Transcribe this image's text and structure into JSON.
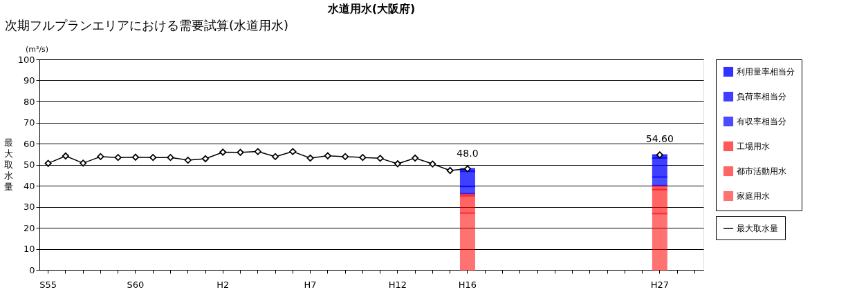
{
  "chart_data": {
    "type": "bar",
    "title": "水道用水(大阪府)",
    "ylabel": "最大取水量",
    "stacked": true,
    "annotations": [
      "次期フルプランエリアにおける需要試算(水道用水)",
      "(m³/s)"
    ],
    "categories": [
      "S55",
      null,
      null,
      null,
      null,
      "S60",
      null,
      null,
      null,
      null,
      "H2",
      null,
      null,
      null,
      null,
      "H7",
      null,
      null,
      null,
      null,
      "H12",
      null,
      null,
      null,
      "H16",
      null,
      null,
      null,
      null,
      null,
      null,
      null,
      null,
      null,
      null,
      "H27",
      null,
      null
    ],
    "series": [
      {
        "name": "家庭用水",
        "color": "#ff0000",
        "values": [
          null,
          null,
          null,
          null,
          null,
          null,
          null,
          null,
          null,
          null,
          null,
          null,
          null,
          null,
          null,
          null,
          null,
          null,
          null,
          null,
          null,
          null,
          null,
          null,
          27.0,
          null,
          null,
          null,
          null,
          null,
          null,
          null,
          null,
          null,
          null,
          26.7,
          null,
          null
        ]
      },
      {
        "name": "都市活動用水",
        "color": "#ff0000",
        "values": [
          null,
          null,
          null,
          null,
          null,
          null,
          null,
          null,
          null,
          null,
          null,
          null,
          null,
          null,
          null,
          null,
          null,
          null,
          null,
          null,
          null,
          null,
          null,
          null,
          8.2,
          null,
          null,
          null,
          null,
          null,
          null,
          null,
          null,
          null,
          null,
          11.4,
          null,
          null
        ]
      },
      {
        "name": "工場用水",
        "color": "#ff0000",
        "values": [
          null,
          null,
          null,
          null,
          null,
          null,
          null,
          null,
          null,
          null,
          null,
          null,
          null,
          null,
          null,
          null,
          null,
          null,
          null,
          null,
          null,
          null,
          null,
          null,
          1.0,
          null,
          null,
          null,
          null,
          null,
          null,
          null,
          null,
          null,
          null,
          2.0,
          null,
          null
        ]
      },
      {
        "name": "有収率相当分",
        "color": "#0000ff",
        "values": [
          null,
          null,
          null,
          null,
          null,
          null,
          null,
          null,
          null,
          null,
          null,
          null,
          null,
          null,
          null,
          null,
          null,
          null,
          null,
          null,
          null,
          null,
          null,
          null,
          3.4,
          null,
          null,
          null,
          null,
          null,
          null,
          null,
          null,
          null,
          null,
          4.0,
          null,
          null
        ]
      },
      {
        "name": "負荷率相当分",
        "color": "#0000ff",
        "values": [
          null,
          null,
          null,
          null,
          null,
          null,
          null,
          null,
          null,
          null,
          null,
          null,
          null,
          null,
          null,
          null,
          null,
          null,
          null,
          null,
          null,
          null,
          null,
          null,
          7.2,
          null,
          null,
          null,
          null,
          null,
          null,
          null,
          null,
          null,
          null,
          9.0,
          null,
          null
        ]
      },
      {
        "name": "利用量率相当分",
        "color": "#0000ff",
        "values": [
          null,
          null,
          null,
          null,
          null,
          null,
          null,
          null,
          null,
          null,
          null,
          null,
          null,
          null,
          null,
          null,
          null,
          null,
          null,
          null,
          null,
          null,
          null,
          null,
          1.2,
          null,
          null,
          null,
          null,
          null,
          null,
          null,
          null,
          null,
          null,
          1.5,
          null,
          null
        ]
      },
      {
        "name": "最大取水量",
        "type": "line",
        "color": "#000000",
        "marker": "diamond",
        "line_style": "solid",
        "values": [
          50.6,
          54.1,
          50.7,
          53.8,
          53.4,
          53.5,
          53.4,
          53.4,
          52.1,
          52.8,
          55.9,
          55.8,
          56.2,
          53.8,
          56.2,
          53.1,
          54.2,
          53.8,
          53.4,
          53.0,
          50.4,
          53.1,
          50.3,
          47.2,
          48.0,
          null,
          null,
          null,
          null,
          null,
          null,
          null,
          null,
          null,
          null,
          54.6,
          null,
          null
        ],
        "value_labels": [
          null,
          null,
          null,
          null,
          null,
          null,
          null,
          null,
          null,
          null,
          null,
          null,
          null,
          null,
          null,
          null,
          null,
          null,
          null,
          null,
          null,
          null,
          null,
          null,
          "48.0",
          null,
          null,
          null,
          null,
          null,
          null,
          null,
          null,
          null,
          null,
          "54.60",
          null,
          null
        ]
      }
    ],
    "ylim": [
      0,
      100
    ],
    "yticks": [
      0,
      10,
      20,
      30,
      40,
      50,
      60,
      70,
      80,
      90,
      100
    ],
    "grid": "y",
    "legend": "right"
  }
}
